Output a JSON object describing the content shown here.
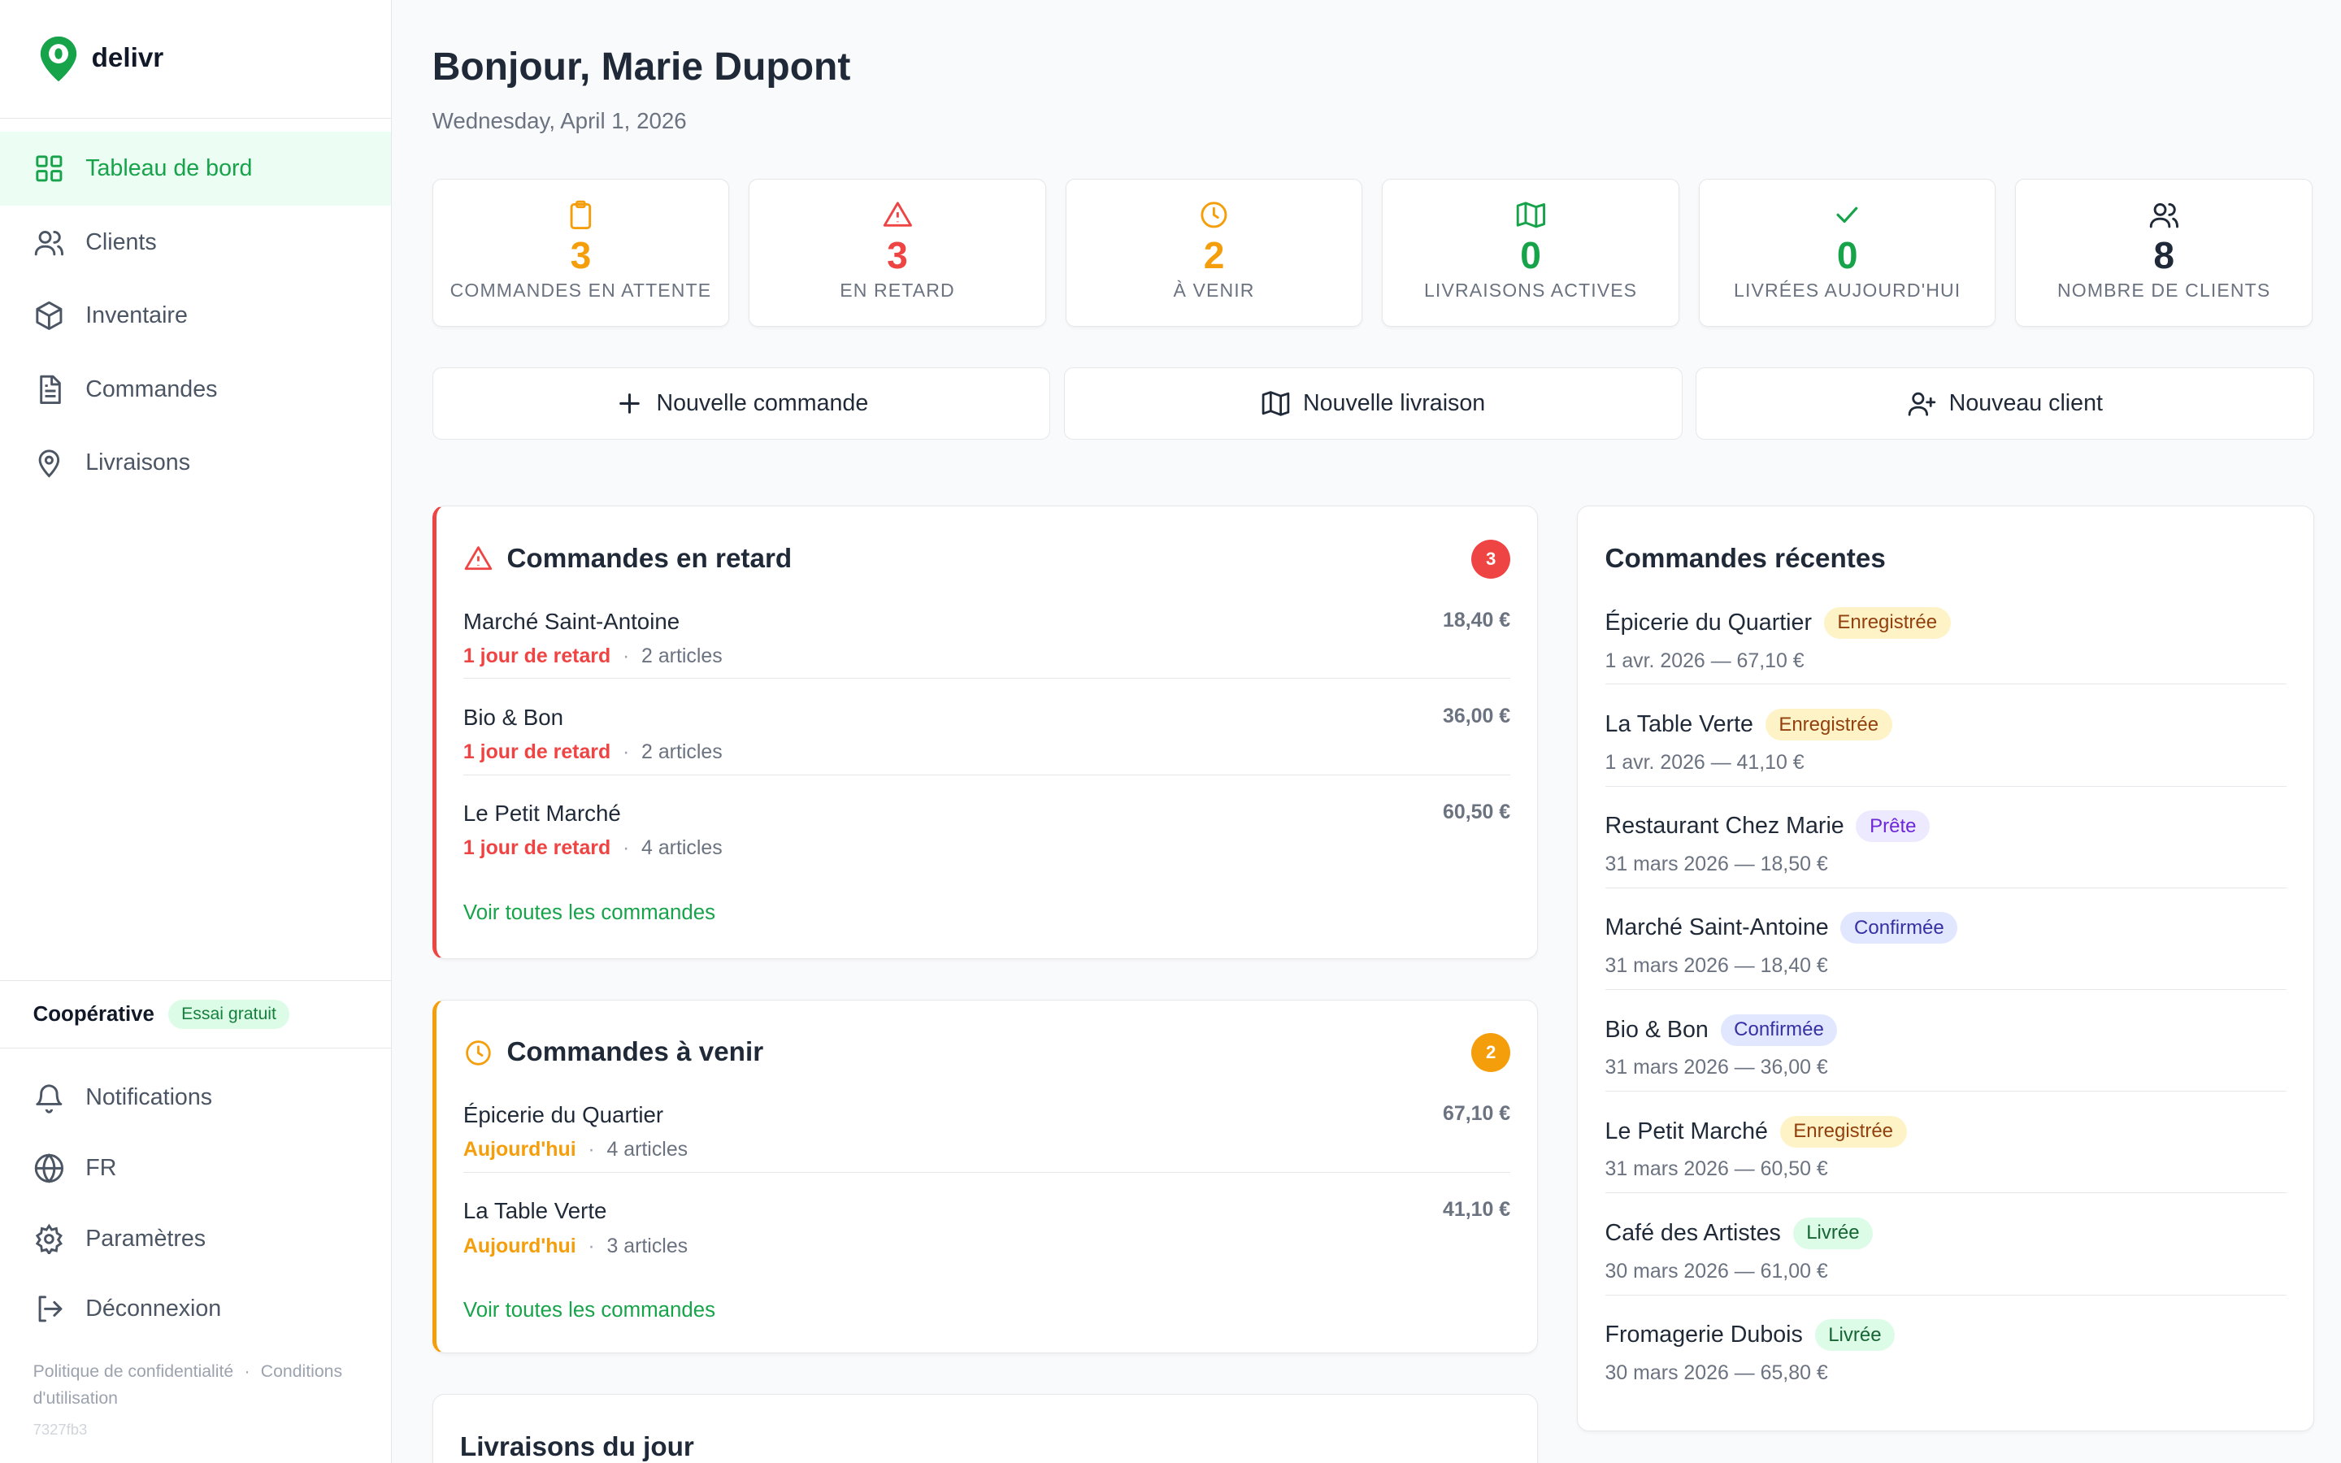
{
  "app": {
    "name": "delivr"
  },
  "sidebar": {
    "nav": [
      {
        "label": "Tableau de bord",
        "icon": "grid-icon",
        "active": true
      },
      {
        "label": "Clients",
        "icon": "users-icon"
      },
      {
        "label": "Inventaire",
        "icon": "box-icon"
      },
      {
        "label": "Commandes",
        "icon": "file-icon"
      },
      {
        "label": "Livraisons",
        "icon": "map-pin-icon"
      }
    ],
    "org": {
      "name": "Coopérative",
      "badge": "Essai gratuit"
    },
    "bottom": [
      {
        "label": "Notifications",
        "icon": "bell-icon"
      },
      {
        "label": "FR",
        "icon": "globe-icon"
      },
      {
        "label": "Paramètres",
        "icon": "gear-icon"
      },
      {
        "label": "Déconnexion",
        "icon": "logout-icon"
      }
    ],
    "footer": {
      "privacy": "Politique de confidentialité",
      "separator": "·",
      "terms": "Conditions d'utilisation",
      "version": "7327fb3"
    }
  },
  "header": {
    "greeting": "Bonjour, Marie Dupont",
    "date": "Wednesday, April 1, 2026"
  },
  "stats": [
    {
      "value": "3",
      "label": "COMMANDES EN ATTENTE",
      "color": "#f59e0b",
      "icon": "clipboard-icon"
    },
    {
      "value": "3",
      "label": "EN RETARD",
      "color": "#ef4444",
      "icon": "alert-triangle-icon"
    },
    {
      "value": "2",
      "label": "À VENIR",
      "color": "#f59e0b",
      "icon": "clock-icon"
    },
    {
      "value": "0",
      "label": "LIVRAISONS ACTIVES",
      "color": "#16a34a",
      "icon": "map-icon"
    },
    {
      "value": "0",
      "label": "LIVRÉES AUJOURD'HUI",
      "color": "#16a34a",
      "icon": "check-icon"
    },
    {
      "value": "8",
      "label": "NOMBRE DE CLIENTS",
      "color": "#1f2937",
      "icon": "users-icon"
    }
  ],
  "actions": [
    {
      "label": "Nouvelle commande",
      "icon": "plus-icon"
    },
    {
      "label": "Nouvelle livraison",
      "icon": "map-icon"
    },
    {
      "label": "Nouveau client",
      "icon": "user-plus-icon"
    }
  ],
  "late": {
    "title": "Commandes en retard",
    "count": "3",
    "link": "Voir toutes les commandes",
    "orders": [
      {
        "name": "Marché Saint-Antoine",
        "amount": "18,40 €",
        "tag": "1 jour de retard",
        "items": "2 articles"
      },
      {
        "name": "Bio & Bon",
        "amount": "36,00 €",
        "tag": "1 jour de retard",
        "items": "2 articles"
      },
      {
        "name": "Le Petit Marché",
        "amount": "60,50 €",
        "tag": "1 jour de retard",
        "items": "4 articles"
      }
    ]
  },
  "upcoming": {
    "title": "Commandes à venir",
    "count": "2",
    "link": "Voir toutes les commandes",
    "orders": [
      {
        "name": "Épicerie du Quartier",
        "amount": "67,10 €",
        "tag": "Aujourd'hui",
        "items": "4 articles"
      },
      {
        "name": "La Table Verte",
        "amount": "41,10 €",
        "tag": "Aujourd'hui",
        "items": "3 articles"
      }
    ]
  },
  "today": {
    "title": "Livraisons du jour"
  },
  "recent": {
    "title": "Commandes récentes",
    "orders": [
      {
        "name": "Épicerie du Quartier",
        "status": "Enregistrée",
        "sub": "1 avr. 2026 — 67,10 €",
        "bg": "#fef3c7",
        "fg": "#92400e"
      },
      {
        "name": "La Table Verte",
        "status": "Enregistrée",
        "sub": "1 avr. 2026 — 41,10 €",
        "bg": "#fef3c7",
        "fg": "#92400e"
      },
      {
        "name": "Restaurant Chez Marie",
        "status": "Prête",
        "sub": "31 mars 2026 — 18,50 €",
        "bg": "#ede9fe",
        "fg": "#6d28d9"
      },
      {
        "name": "Marché Saint-Antoine",
        "status": "Confirmée",
        "sub": "31 mars 2026 — 18,40 €",
        "bg": "#e0e7ff",
        "fg": "#3730a3"
      },
      {
        "name": "Bio & Bon",
        "status": "Confirmée",
        "sub": "31 mars 2026 — 36,00 €",
        "bg": "#e0e7ff",
        "fg": "#3730a3"
      },
      {
        "name": "Le Petit Marché",
        "status": "Enregistrée",
        "sub": "31 mars 2026 — 60,50 €",
        "bg": "#fef3c7",
        "fg": "#92400e"
      },
      {
        "name": "Café des Artistes",
        "status": "Livrée",
        "sub": "30 mars 2026 — 61,00 €",
        "bg": "#dcfce7",
        "fg": "#166534"
      },
      {
        "name": "Fromagerie Dubois",
        "status": "Livrée",
        "sub": "30 mars 2026 — 65,80 €",
        "bg": "#dcfce7",
        "fg": "#166534"
      }
    ]
  },
  "colors": {
    "accent": "#16a34a",
    "danger": "#ef4444",
    "warning": "#f59e0b"
  }
}
